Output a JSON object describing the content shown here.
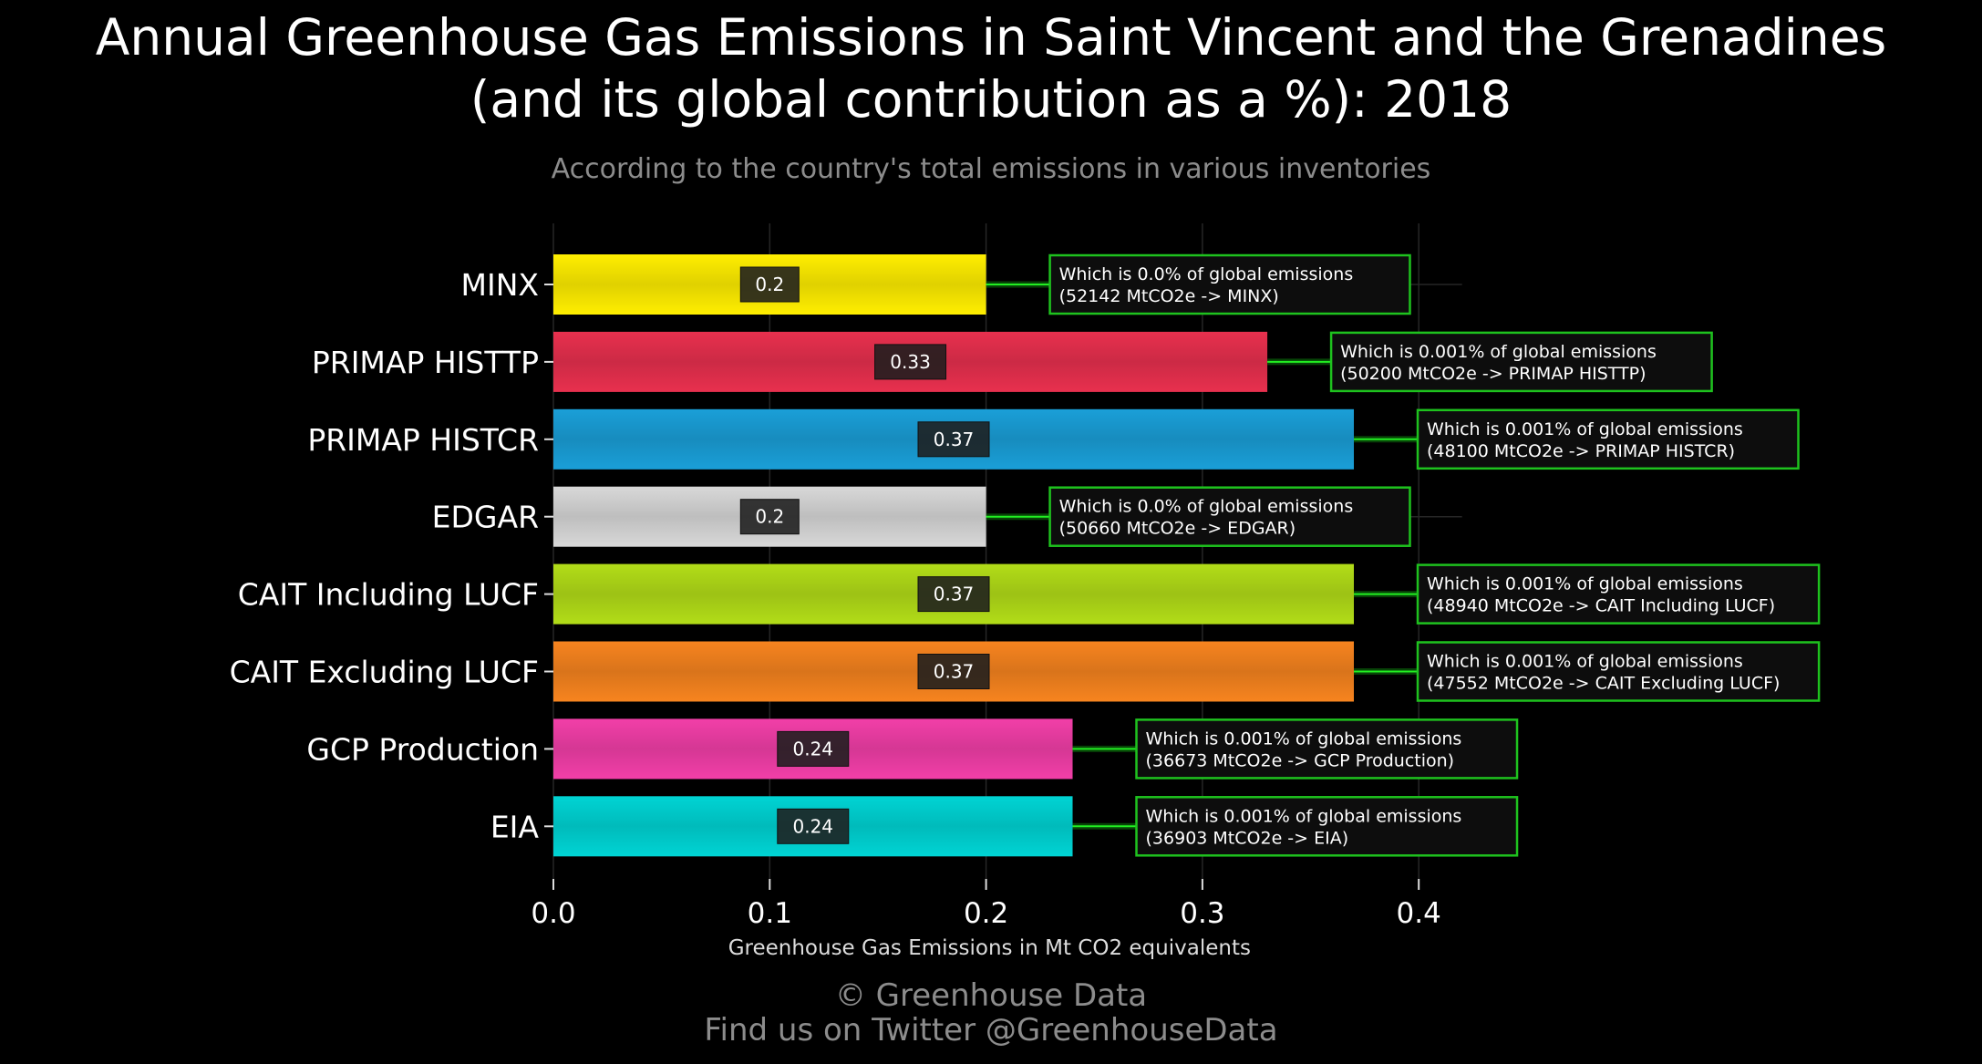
{
  "title_line1": "Annual Greenhouse Gas Emissions in Saint Vincent and the Grenadines",
  "title_line2": "(and its global contribution as a %): 2018",
  "subtitle": "According to the country's total emissions in various inventories",
  "footer_line1": "© Greenhouse Data",
  "footer_line2": "Find us on Twitter @GreenhouseData",
  "chart_data": {
    "type": "bar",
    "orientation": "horizontal",
    "title": "Annual Greenhouse Gas Emissions in Saint Vincent and the Grenadines (and its global contribution as a %): 2018",
    "xlabel": "Greenhouse Gas Emissions in Mt CO2 equivalents",
    "ylabel": "",
    "xlim": [
      0,
      0.42
    ],
    "xticks": [
      "0.0",
      "0.1",
      "0.2",
      "0.3",
      "0.4"
    ],
    "xtick_values": [
      0,
      0.1,
      0.2,
      0.3,
      0.4
    ],
    "grid": true,
    "categories": [
      "MINX",
      "PRIMAP HISTTP",
      "PRIMAP HISTCR",
      "EDGAR",
      "CAIT Including LUCF",
      "CAIT Excluding LUCF",
      "GCP Production",
      "EIA"
    ],
    "values": [
      0.2,
      0.33,
      0.37,
      0.2,
      0.37,
      0.37,
      0.24,
      0.24
    ],
    "value_labels": [
      "0.2",
      "0.33",
      "0.37",
      "0.2",
      "0.37",
      "0.37",
      "0.24",
      "0.24"
    ],
    "colors": [
      "#ffee00",
      "#e8304e",
      "#1a9fd8",
      "#d8d8d8",
      "#b2dd18",
      "#f7841f",
      "#f23fa8",
      "#00d4d4"
    ],
    "annotations_line1": [
      "Which is 0.0% of global emissions",
      "Which is 0.001% of global emissions",
      "Which is 0.001% of global emissions",
      "Which is 0.0% of global emissions",
      "Which is 0.001% of global emissions",
      "Which is 0.001% of global emissions",
      "Which is 0.001% of global emissions",
      "Which is 0.001% of global emissions"
    ],
    "annotations_line2": [
      "(52142 MtCO2e -> MINX)",
      "(50200 MtCO2e -> PRIMAP HISTTP)",
      "(48100 MtCO2e -> PRIMAP HISTCR)",
      "(50660 MtCO2e -> EDGAR)",
      "(48940 MtCO2e -> CAIT Including LUCF)",
      "(47552 MtCO2e -> CAIT Excluding LUCF)",
      "(36673 MtCO2e -> GCP Production)",
      "(36903 MtCO2e -> EIA)"
    ]
  }
}
